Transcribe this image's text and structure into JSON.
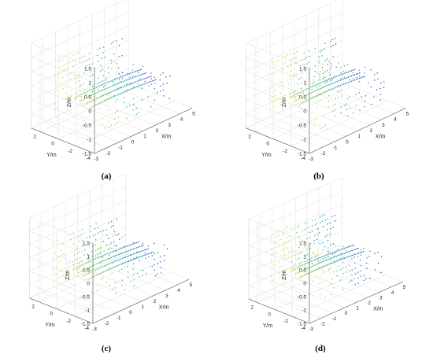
{
  "figure": {
    "panel_labels": [
      "(a)",
      "(b)",
      "(c)",
      "(d)"
    ]
  },
  "chart_data": [
    {
      "panel": "(a)",
      "type": "scatter3d",
      "xlabel": "X/m",
      "ylabel": "Y/m",
      "zlabel": "Z/m",
      "xlim": [
        -3,
        5
      ],
      "ylim": [
        -4,
        3
      ],
      "zlim": [
        -1.5,
        1.5
      ],
      "xticks": [
        "-3",
        "-2",
        "-1",
        "0",
        "1",
        "2",
        "3",
        "4",
        "5"
      ],
      "yticks": [
        "-4",
        "-2",
        "0",
        "2"
      ],
      "zticks": [
        "-1.5",
        "-1",
        "-0.5",
        "0",
        "0.5",
        "1",
        "1.5"
      ],
      "grid": true,
      "colormap": [
        "#f2e030",
        "#c9d93a",
        "#5fc46a",
        "#2bb0a4",
        "#2a7fbf",
        "#3f3cb8"
      ],
      "scene": {
        "left_wall_top": 0.8,
        "right_wall_top": 1.5,
        "ground_z": 0,
        "ground_arc_rows": 4
      }
    },
    {
      "panel": "(b)",
      "type": "scatter3d",
      "xlabel": "X/m",
      "ylabel": "Y/m",
      "zlabel": "Z/m",
      "xlim": [
        -3,
        5
      ],
      "ylim": [
        -4,
        3
      ],
      "zlim": [
        -1.5,
        1.5
      ],
      "xticks": [
        "-3",
        "-2",
        "-1",
        "0",
        "1",
        "2",
        "3",
        "4",
        "5"
      ],
      "yticks": [
        "-4",
        "-2",
        "0",
        "2"
      ],
      "zticks": [
        "-1.5",
        "-1",
        "-0.5",
        "0",
        "0.5",
        "1",
        "1.5"
      ],
      "grid": true,
      "colormap": [
        "#f2e030",
        "#c9d93a",
        "#5fc46a",
        "#2bb0a4",
        "#2a7fbf",
        "#3f3cb8"
      ],
      "scene": {
        "left_wall_top": 0.8,
        "right_wall_top": 1.5,
        "ground_z": 0,
        "ground_arc_rows": 3
      }
    },
    {
      "panel": "(c)",
      "type": "scatter3d",
      "xlabel": "X/m",
      "ylabel": "Y/m",
      "zlabel": "Z/m",
      "xlim": [
        -3,
        5
      ],
      "ylim": [
        -4,
        3
      ],
      "zlim": [
        -1.5,
        1.5
      ],
      "xticks": [
        "-3",
        "-2",
        "-1",
        "0",
        "1",
        "2",
        "3",
        "4",
        "5"
      ],
      "yticks": [
        "-4",
        "-2",
        "0",
        "2"
      ],
      "zticks": [
        "-1.5",
        "-1",
        "-0.5",
        "0",
        "0.5",
        "1",
        "1.5"
      ],
      "grid": true,
      "colormap": [
        "#f2e030",
        "#c9d93a",
        "#5fc46a",
        "#2bb0a4",
        "#2a7fbf",
        "#3f3cb8"
      ],
      "scene": {
        "left_wall_top": 0.7,
        "right_wall_top": 1.5,
        "ground_z": 0,
        "ground_arc_rows": 4
      }
    },
    {
      "panel": "(d)",
      "type": "scatter3d",
      "xlabel": "X/m",
      "ylabel": "Y/m",
      "zlabel": "Z/m",
      "xlim": [
        -3,
        5
      ],
      "ylim": [
        -4,
        3
      ],
      "zlim": [
        -1.5,
        1.5
      ],
      "xticks": [
        "-3",
        "-2",
        "-1",
        "0",
        "1",
        "2",
        "3",
        "4",
        "5"
      ],
      "yticks": [
        "-4",
        "-2",
        "0",
        "2"
      ],
      "zticks": [
        "-1.5",
        "-1",
        "-0.5",
        "0",
        "0.5",
        "1",
        "1.5"
      ],
      "grid": true,
      "colormap": [
        "#f2e030",
        "#c9d93a",
        "#5fc46a",
        "#2bb0a4",
        "#2a7fbf",
        "#3f3cb8"
      ],
      "scene": {
        "left_wall_top": 1.0,
        "right_wall_top": 1.0,
        "ground_z": 0,
        "ground_arc_rows": 3
      }
    }
  ]
}
